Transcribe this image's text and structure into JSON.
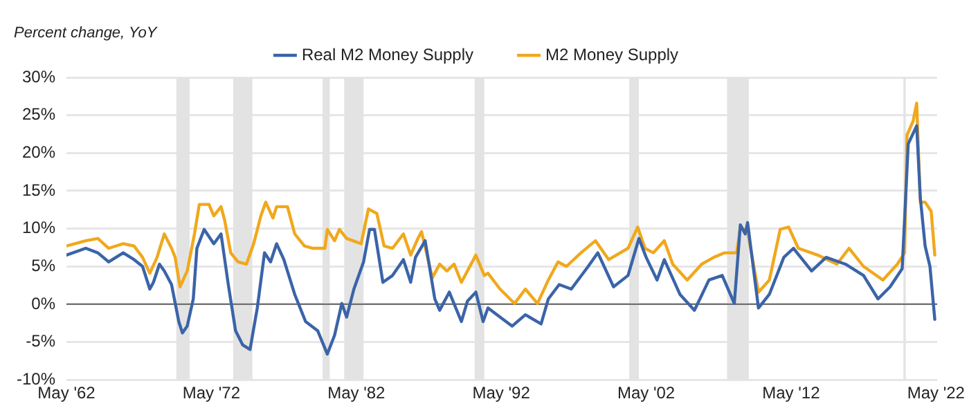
{
  "chart_data": {
    "type": "line",
    "ylabel": "Percent change, YoY",
    "xlim": [
      "1962-05",
      "2022-06"
    ],
    "xticks": [
      {
        "value": "1962-05",
        "label": "May '62"
      },
      {
        "value": "1972-05",
        "label": "May '72"
      },
      {
        "value": "1982-05",
        "label": "May '82"
      },
      {
        "value": "1992-05",
        "label": "May '92"
      },
      {
        "value": "2002-05",
        "label": "May '02"
      },
      {
        "value": "2012-05",
        "label": "May '12"
      },
      {
        "value": "2022-05",
        "label": "May '22"
      }
    ],
    "ylim": [
      -10,
      30
    ],
    "yticks": [
      {
        "value": -10,
        "label": "-10%"
      },
      {
        "value": -5,
        "label": "-5%"
      },
      {
        "value": 0,
        "label": "0%"
      },
      {
        "value": 5,
        "label": "5%"
      },
      {
        "value": 10,
        "label": "10%"
      },
      {
        "value": 15,
        "label": "15%"
      },
      {
        "value": 20,
        "label": "20%"
      },
      {
        "value": 25,
        "label": "25%"
      },
      {
        "value": 30,
        "label": "30%"
      }
    ],
    "grid": "y",
    "legend": "top",
    "marker": "none",
    "line_style": "solid",
    "ref_lines": [
      {
        "axis": "y",
        "value": 0,
        "color": "#707070"
      }
    ],
    "bands": [
      {
        "axis": "x",
        "from": "1969-12",
        "to": "1970-11",
        "color": "#e3e3e3"
      },
      {
        "axis": "x",
        "from": "1973-11",
        "to": "1975-03",
        "color": "#e3e3e3"
      },
      {
        "axis": "x",
        "from": "1980-01",
        "to": "1980-07",
        "color": "#e3e3e3"
      },
      {
        "axis": "x",
        "from": "1981-07",
        "to": "1982-11",
        "color": "#e3e3e3"
      },
      {
        "axis": "x",
        "from": "1990-07",
        "to": "1991-03",
        "color": "#e3e3e3"
      },
      {
        "axis": "x",
        "from": "2001-03",
        "to": "2001-11",
        "color": "#e3e3e3"
      },
      {
        "axis": "x",
        "from": "2007-12",
        "to": "2009-06",
        "color": "#e3e3e3"
      },
      {
        "axis": "x",
        "from": "2020-02",
        "to": "2020-04",
        "color": "#e3e3e3"
      }
    ],
    "series": [
      {
        "name": "Real M2 Money Supply",
        "color": "#3b64a8",
        "x": [
          "1962-05",
          "1963-09",
          "1964-07",
          "1965-04",
          "1966-04",
          "1967-01",
          "1967-08",
          "1968-02",
          "1968-05",
          "1968-10",
          "1969-02",
          "1969-08",
          "1970-02",
          "1970-05",
          "1970-09",
          "1971-02",
          "1971-05",
          "1971-11",
          "1972-07",
          "1973-01",
          "1973-07",
          "1974-01",
          "1974-07",
          "1975-01",
          "1975-07",
          "1976-01",
          "1976-06",
          "1976-11",
          "1977-05",
          "1978-02",
          "1978-11",
          "1979-09",
          "1980-05",
          "1980-11",
          "1981-05",
          "1981-09",
          "1982-03",
          "1982-11",
          "1983-04",
          "1983-08",
          "1984-03",
          "1984-11",
          "1985-08",
          "1986-02",
          "1986-06",
          "1987-02",
          "1987-10",
          "1988-02",
          "1988-10",
          "1989-08",
          "1990-01",
          "1990-08",
          "1991-02",
          "1991-06",
          "1992-04",
          "1993-02",
          "1994-01",
          "1995-02",
          "1995-08",
          "1996-05",
          "1997-03",
          "1998-05",
          "1999-01",
          "2000-02",
          "2001-02",
          "2001-11",
          "2002-05",
          "2003-02",
          "2003-08",
          "2004-09",
          "2005-09",
          "2006-09",
          "2007-08",
          "2008-06",
          "2008-11",
          "2009-03",
          "2009-05",
          "2010-02",
          "2010-11",
          "2011-11",
          "2012-07",
          "2013-10",
          "2014-10",
          "2016-02",
          "2017-05",
          "2018-05",
          "2019-03",
          "2020-01",
          "2020-06",
          "2021-01",
          "2021-04",
          "2021-08",
          "2021-12",
          "2022-04"
        ],
        "values": [
          6.5,
          7.4,
          6.8,
          5.6,
          6.8,
          5.9,
          5.0,
          2.0,
          2.9,
          5.3,
          4.4,
          2.6,
          -2.3,
          -3.8,
          -2.9,
          0.7,
          7.4,
          9.9,
          8.0,
          9.3,
          2.6,
          -3.5,
          -5.4,
          -6.0,
          -0.5,
          6.8,
          5.6,
          8.0,
          5.9,
          1.3,
          -2.3,
          -3.5,
          -6.6,
          -4.1,
          0.1,
          -1.7,
          2.0,
          5.6,
          9.9,
          9.9,
          2.9,
          3.8,
          5.9,
          2.9,
          6.2,
          8.4,
          0.7,
          -0.8,
          1.6,
          -2.3,
          0.4,
          1.6,
          -2.3,
          -0.5,
          -1.7,
          -2.9,
          -1.4,
          -2.6,
          0.7,
          2.6,
          2.0,
          5.0,
          6.8,
          2.3,
          3.8,
          8.7,
          6.2,
          3.2,
          5.9,
          1.3,
          -0.8,
          3.2,
          3.8,
          0.1,
          10.5,
          9.3,
          10.8,
          -0.5,
          1.3,
          6.2,
          7.4,
          4.4,
          6.2,
          5.3,
          3.8,
          0.7,
          2.3,
          4.7,
          21.2,
          23.6,
          14.1,
          7.7,
          5.0,
          -2.0
        ]
      },
      {
        "name": "M2 Money Supply",
        "color": "#f0a81c",
        "x": [
          "1962-05",
          "1963-09",
          "1964-07",
          "1965-04",
          "1966-04",
          "1967-01",
          "1967-08",
          "1968-02",
          "1968-08",
          "1969-02",
          "1969-08",
          "1969-11",
          "1970-03",
          "1970-09",
          "1971-03",
          "1971-07",
          "1972-03",
          "1972-07",
          "1973-01",
          "1973-04",
          "1973-09",
          "1974-03",
          "1974-10",
          "1975-04",
          "1975-10",
          "1976-02",
          "1976-08",
          "1976-11",
          "1977-08",
          "1978-02",
          "1978-10",
          "1979-05",
          "1980-03",
          "1980-05",
          "1980-11",
          "1981-03",
          "1981-09",
          "1982-09",
          "1983-03",
          "1983-10",
          "1984-04",
          "1984-11",
          "1985-08",
          "1986-02",
          "1986-08",
          "1986-11",
          "1987-08",
          "1988-02",
          "1988-08",
          "1989-02",
          "1989-08",
          "1990-08",
          "1991-03",
          "1991-06",
          "1992-04",
          "1993-04",
          "1994-01",
          "1994-11",
          "1995-08",
          "1996-04",
          "1996-11",
          "1997-11",
          "1998-11",
          "1999-10",
          "2001-02",
          "2001-10",
          "2002-04",
          "2002-11",
          "2003-08",
          "2004-03",
          "2005-03",
          "2006-03",
          "2007-01",
          "2007-10",
          "2008-08",
          "2008-11",
          "2009-05",
          "2010-02",
          "2010-11",
          "2011-08",
          "2012-03",
          "2012-11",
          "2014-03",
          "2015-07",
          "2016-05",
          "2017-05",
          "2018-09",
          "2019-09",
          "2020-03",
          "2020-05",
          "2020-10",
          "2021-01",
          "2021-04",
          "2021-08",
          "2022-01",
          "2022-04"
        ],
        "values": [
          7.7,
          8.4,
          8.7,
          7.4,
          8.0,
          7.7,
          6.2,
          4.1,
          6.2,
          9.3,
          7.4,
          6.2,
          2.3,
          4.4,
          9.3,
          13.2,
          13.2,
          11.7,
          12.9,
          11.1,
          6.8,
          5.6,
          5.3,
          8.0,
          11.7,
          13.5,
          11.4,
          12.9,
          12.9,
          9.3,
          7.7,
          7.4,
          7.4,
          9.9,
          8.4,
          9.9,
          8.7,
          8.0,
          12.6,
          12.0,
          7.7,
          7.4,
          9.3,
          6.5,
          8.7,
          9.6,
          3.5,
          5.3,
          4.4,
          5.3,
          2.9,
          6.5,
          3.8,
          4.1,
          2.0,
          0.1,
          2.0,
          0.1,
          3.2,
          5.6,
          5.0,
          6.8,
          8.4,
          5.9,
          7.4,
          10.2,
          7.4,
          6.8,
          8.4,
          5.3,
          3.2,
          5.3,
          6.2,
          6.8,
          6.8,
          10.2,
          9.6,
          1.6,
          3.2,
          9.9,
          10.2,
          7.4,
          6.5,
          5.3,
          7.4,
          5.0,
          3.2,
          5.3,
          6.8,
          22.4,
          24.2,
          26.6,
          13.5,
          13.5,
          12.3,
          6.5
        ]
      }
    ]
  }
}
